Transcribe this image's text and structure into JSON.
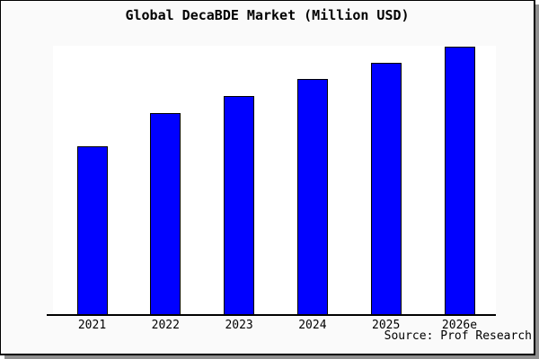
{
  "window": {
    "background_color": "#fafafa",
    "frame_border_color": "#000000",
    "drop_shadow_color": "#8f8f8f"
  },
  "chart_data": {
    "type": "bar",
    "title": "Global DecaBDE Market (Million USD)",
    "categories": [
      "2021",
      "2022",
      "2023",
      "2024",
      "2025",
      "2026e"
    ],
    "values": [
      62.8,
      75.1,
      81.4,
      87.7,
      93.7,
      99.7
    ],
    "value_scale": "relative units estimated from bar heights; chart shows no y-axis tick labels",
    "xlabel": "",
    "ylabel": "",
    "ylim": [
      0,
      100
    ],
    "grid": false,
    "legend": false,
    "bar_color": "#0000FF",
    "bar_border_color": "#000000",
    "plot_background": "#ffffff",
    "source_note": "Source: Prof Research"
  }
}
